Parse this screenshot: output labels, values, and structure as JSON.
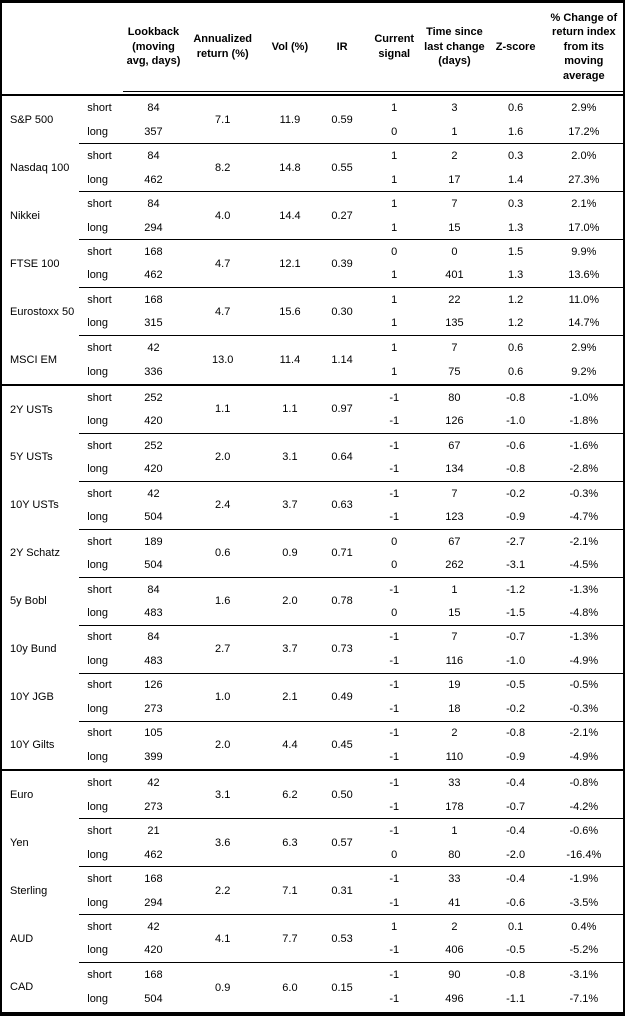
{
  "colors": {
    "border": "#000000",
    "text": "#000000",
    "background": "#ffffff"
  },
  "table": {
    "headers": [
      "Lookback (moving avg, days)",
      "Annualized return (%)",
      "Vol (%)",
      "IR",
      "Current signal",
      "Time since last change (days)",
      "Z-score",
      "% Change of return index from its moving average"
    ],
    "groups": [
      {
        "name": "S&P 500",
        "section_start": false,
        "terms": [
          "short",
          "long"
        ],
        "lookback": [
          "84",
          "357"
        ],
        "ret": "7.1",
        "vol": "11.9",
        "ir": "0.59",
        "signal": [
          "1",
          "0"
        ],
        "time": [
          "3",
          "1"
        ],
        "z": [
          "0.6",
          "1.6"
        ],
        "chg": [
          "2.9%",
          "17.2%"
        ]
      },
      {
        "name": "Nasdaq 100",
        "section_start": false,
        "terms": [
          "short",
          "long"
        ],
        "lookback": [
          "84",
          "462"
        ],
        "ret": "8.2",
        "vol": "14.8",
        "ir": "0.55",
        "signal": [
          "1",
          "1"
        ],
        "time": [
          "2",
          "17"
        ],
        "z": [
          "0.3",
          "1.4"
        ],
        "chg": [
          "2.0%",
          "27.3%"
        ]
      },
      {
        "name": "Nikkei",
        "section_start": false,
        "terms": [
          "short",
          "long"
        ],
        "lookback": [
          "84",
          "294"
        ],
        "ret": "4.0",
        "vol": "14.4",
        "ir": "0.27",
        "signal": [
          "1",
          "1"
        ],
        "time": [
          "7",
          "15"
        ],
        "z": [
          "0.3",
          "1.3"
        ],
        "chg": [
          "2.1%",
          "17.0%"
        ]
      },
      {
        "name": "FTSE 100",
        "section_start": false,
        "terms": [
          "short",
          "long"
        ],
        "lookback": [
          "168",
          "462"
        ],
        "ret": "4.7",
        "vol": "12.1",
        "ir": "0.39",
        "signal": [
          "0",
          "1"
        ],
        "time": [
          "0",
          "401"
        ],
        "z": [
          "1.5",
          "1.3"
        ],
        "chg": [
          "9.9%",
          "13.6%"
        ]
      },
      {
        "name": "Eurostoxx 50",
        "section_start": false,
        "terms": [
          "short",
          "long"
        ],
        "lookback": [
          "168",
          "315"
        ],
        "ret": "4.7",
        "vol": "15.6",
        "ir": "0.30",
        "signal": [
          "1",
          "1"
        ],
        "time": [
          "22",
          "135"
        ],
        "z": [
          "1.2",
          "1.2"
        ],
        "chg": [
          "11.0%",
          "14.7%"
        ]
      },
      {
        "name": "MSCI EM",
        "section_start": false,
        "terms": [
          "short",
          "long"
        ],
        "lookback": [
          "42",
          "336"
        ],
        "ret": "13.0",
        "vol": "11.4",
        "ir": "1.14",
        "signal": [
          "1",
          "1"
        ],
        "time": [
          "7",
          "75"
        ],
        "z": [
          "0.6",
          "0.6"
        ],
        "chg": [
          "2.9%",
          "9.2%"
        ]
      },
      {
        "name": "2Y USTs",
        "section_start": true,
        "terms": [
          "short",
          "long"
        ],
        "lookback": [
          "252",
          "420"
        ],
        "ret": "1.1",
        "vol": "1.1",
        "ir": "0.97",
        "signal": [
          "-1",
          "-1"
        ],
        "time": [
          "80",
          "126"
        ],
        "z": [
          "-0.8",
          "-1.0"
        ],
        "chg": [
          "-1.0%",
          "-1.8%"
        ]
      },
      {
        "name": "5Y USTs",
        "section_start": false,
        "terms": [
          "short",
          "long"
        ],
        "lookback": [
          "252",
          "420"
        ],
        "ret": "2.0",
        "vol": "3.1",
        "ir": "0.64",
        "signal": [
          "-1",
          "-1"
        ],
        "time": [
          "67",
          "134"
        ],
        "z": [
          "-0.6",
          "-0.8"
        ],
        "chg": [
          "-1.6%",
          "-2.8%"
        ]
      },
      {
        "name": "10Y USTs",
        "section_start": false,
        "terms": [
          "short",
          "long"
        ],
        "lookback": [
          "42",
          "504"
        ],
        "ret": "2.4",
        "vol": "3.7",
        "ir": "0.63",
        "signal": [
          "-1",
          "-1"
        ],
        "time": [
          "7",
          "123"
        ],
        "z": [
          "-0.2",
          "-0.9"
        ],
        "chg": [
          "-0.3%",
          "-4.7%"
        ]
      },
      {
        "name": "2Y Schatz",
        "section_start": false,
        "terms": [
          "short",
          "long"
        ],
        "lookback": [
          "189",
          "504"
        ],
        "ret": "0.6",
        "vol": "0.9",
        "ir": "0.71",
        "signal": [
          "0",
          "0"
        ],
        "time": [
          "67",
          "262"
        ],
        "z": [
          "-2.7",
          "-3.1"
        ],
        "chg": [
          "-2.1%",
          "-4.5%"
        ]
      },
      {
        "name": "5y Bobl",
        "section_start": false,
        "terms": [
          "short",
          "long"
        ],
        "lookback": [
          "84",
          "483"
        ],
        "ret": "1.6",
        "vol": "2.0",
        "ir": "0.78",
        "signal": [
          "-1",
          "0"
        ],
        "time": [
          "1",
          "15"
        ],
        "z": [
          "-1.2",
          "-1.5"
        ],
        "chg": [
          "-1.3%",
          "-4.8%"
        ]
      },
      {
        "name": "10y Bund",
        "section_start": false,
        "terms": [
          "short",
          "long"
        ],
        "lookback": [
          "84",
          "483"
        ],
        "ret": "2.7",
        "vol": "3.7",
        "ir": "0.73",
        "signal": [
          "-1",
          "-1"
        ],
        "time": [
          "7",
          "116"
        ],
        "z": [
          "-0.7",
          "-1.0"
        ],
        "chg": [
          "-1.3%",
          "-4.9%"
        ]
      },
      {
        "name": "10Y JGB",
        "section_start": false,
        "terms": [
          "short",
          "long"
        ],
        "lookback": [
          "126",
          "273"
        ],
        "ret": "1.0",
        "vol": "2.1",
        "ir": "0.49",
        "signal": [
          "-1",
          "-1"
        ],
        "time": [
          "19",
          "18"
        ],
        "z": [
          "-0.5",
          "-0.2"
        ],
        "chg": [
          "-0.5%",
          "-0.3%"
        ]
      },
      {
        "name": "10Y Gilts",
        "section_start": false,
        "terms": [
          "short",
          "long"
        ],
        "lookback": [
          "105",
          "399"
        ],
        "ret": "2.0",
        "vol": "4.4",
        "ir": "0.45",
        "signal": [
          "-1",
          "-1"
        ],
        "time": [
          "2",
          "110"
        ],
        "z": [
          "-0.8",
          "-0.9"
        ],
        "chg": [
          "-2.1%",
          "-4.9%"
        ]
      },
      {
        "name": "Euro",
        "section_start": true,
        "terms": [
          "short",
          "long"
        ],
        "lookback": [
          "42",
          "273"
        ],
        "ret": "3.1",
        "vol": "6.2",
        "ir": "0.50",
        "signal": [
          "-1",
          "-1"
        ],
        "time": [
          "33",
          "178"
        ],
        "z": [
          "-0.4",
          "-0.7"
        ],
        "chg": [
          "-0.8%",
          "-4.2%"
        ]
      },
      {
        "name": "Yen",
        "section_start": false,
        "terms": [
          "short",
          "long"
        ],
        "lookback": [
          "21",
          "462"
        ],
        "ret": "3.6",
        "vol": "6.3",
        "ir": "0.57",
        "signal": [
          "-1",
          "0"
        ],
        "time": [
          "1",
          "80"
        ],
        "z": [
          "-0.4",
          "-2.0"
        ],
        "chg": [
          "-0.6%",
          "-16.4%"
        ]
      },
      {
        "name": "Sterling",
        "section_start": false,
        "terms": [
          "short",
          "long"
        ],
        "lookback": [
          "168",
          "294"
        ],
        "ret": "2.2",
        "vol": "7.1",
        "ir": "0.31",
        "signal": [
          "-1",
          "-1"
        ],
        "time": [
          "33",
          "41"
        ],
        "z": [
          "-0.4",
          "-0.6"
        ],
        "chg": [
          "-1.9%",
          "-3.5%"
        ]
      },
      {
        "name": "AUD",
        "section_start": false,
        "terms": [
          "short",
          "long"
        ],
        "lookback": [
          "42",
          "420"
        ],
        "ret": "4.1",
        "vol": "7.7",
        "ir": "0.53",
        "signal": [
          "1",
          "-1"
        ],
        "time": [
          "2",
          "406"
        ],
        "z": [
          "0.1",
          "-0.5"
        ],
        "chg": [
          "0.4%",
          "-5.2%"
        ]
      },
      {
        "name": "CAD",
        "section_start": false,
        "terms": [
          "short",
          "long"
        ],
        "lookback": [
          "168",
          "504"
        ],
        "ret": "0.9",
        "vol": "6.0",
        "ir": "0.15",
        "signal": [
          "-1",
          "-1"
        ],
        "time": [
          "90",
          "496"
        ],
        "z": [
          "-0.8",
          "-1.1"
        ],
        "chg": [
          "-3.1%",
          "-7.1%"
        ]
      }
    ]
  }
}
